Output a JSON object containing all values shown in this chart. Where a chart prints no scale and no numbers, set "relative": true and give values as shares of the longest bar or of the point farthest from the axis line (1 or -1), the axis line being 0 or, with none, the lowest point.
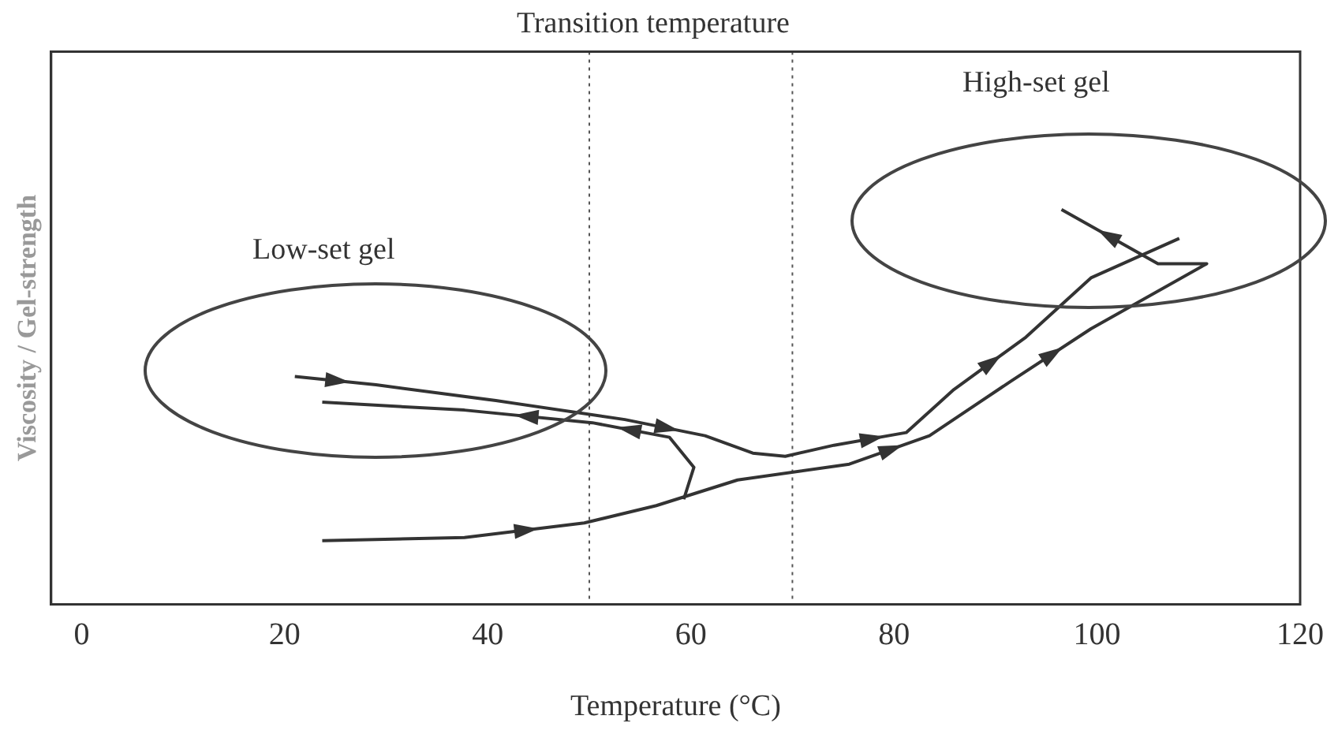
{
  "chart_data": {
    "type": "line",
    "title": "Transition temperature",
    "xlabel": "Temperature (°C)",
    "ylabel": "Viscosity / Gel-strength",
    "relative": true,
    "xlim": [
      -3,
      120
    ],
    "xticks": [
      0,
      20,
      40,
      60,
      80,
      100,
      120
    ],
    "grid": false,
    "legend": false,
    "marker": "none",
    "line_style": "solid",
    "series": [
      {
        "color": "#333333",
        "x": [
          21.0,
          29.0,
          40.8,
          53.5,
          61.4,
          66.1,
          69.3,
          74.1,
          81.2,
          85.9,
          93.0,
          99.4,
          108.1
        ],
        "values": [
          0.577,
          0.556,
          0.516,
          0.468,
          0.427,
          0.383,
          0.375,
          0.403,
          0.435,
          0.544,
          0.677,
          0.827,
          0.927
        ]
      },
      {
        "color": "#333333",
        "x": [
          23.7,
          37.7,
          49.5,
          56.6,
          64.6,
          75.6,
          83.5,
          91.5,
          99.4,
          110.8,
          106.0,
          96.5
        ],
        "values": [
          0.161,
          0.169,
          0.206,
          0.25,
          0.315,
          0.355,
          0.427,
          0.565,
          0.698,
          0.863,
          0.863,
          1.0
        ]
      },
      {
        "color": "#333333",
        "x": [
          59.3,
          60.3,
          57.9,
          50.3,
          37.7,
          23.7
        ],
        "values": [
          0.266,
          0.347,
          0.423,
          0.46,
          0.492,
          0.512
        ]
      }
    ],
    "ref_lines": [
      {
        "axis": "x",
        "value": 50,
        "color": "#555555",
        "line_style": "dotted"
      },
      {
        "axis": "x",
        "value": 70,
        "color": "#555555",
        "line_style": "dotted"
      }
    ],
    "annotations": [
      "Low-set gel",
      "High-set gel"
    ]
  }
}
